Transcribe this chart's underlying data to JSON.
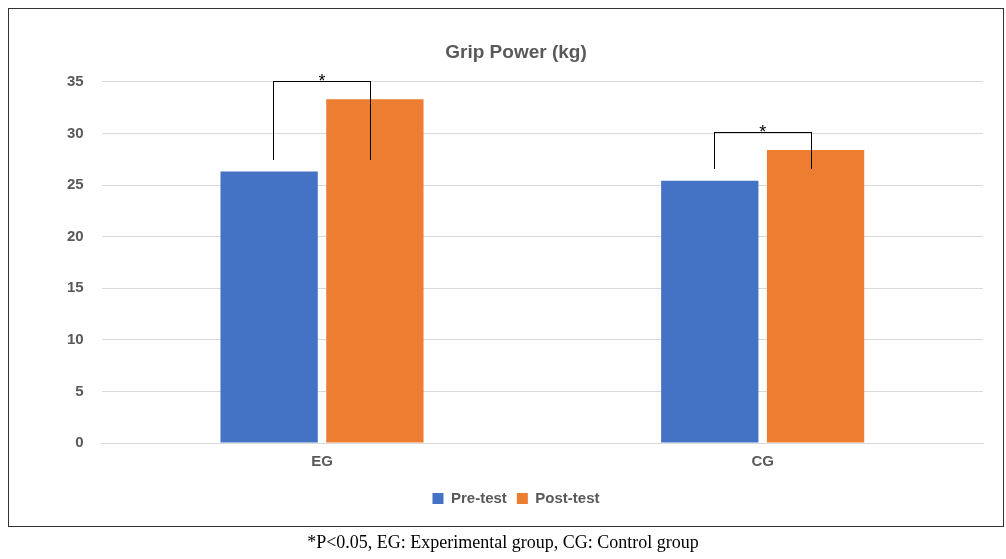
{
  "chart_data": {
    "type": "bar",
    "title": "Grip Power (kg)",
    "categories": [
      "EG",
      "CG"
    ],
    "series": [
      {
        "name": "Pre-test",
        "color": "#4472c4",
        "values": [
          26.3,
          25.4
        ]
      },
      {
        "name": "Post-test",
        "color": "#ed7d31",
        "values": [
          33.3,
          28.4
        ]
      }
    ],
    "ylim": [
      0,
      35
    ],
    "yticks": [
      0,
      5,
      10,
      15,
      20,
      25,
      30,
      35
    ],
    "grid": "y",
    "legend": "bottom",
    "annotations": [
      "*",
      "*",
      "*P<0.05, EG: Experimental group, CG: Control group"
    ]
  }
}
